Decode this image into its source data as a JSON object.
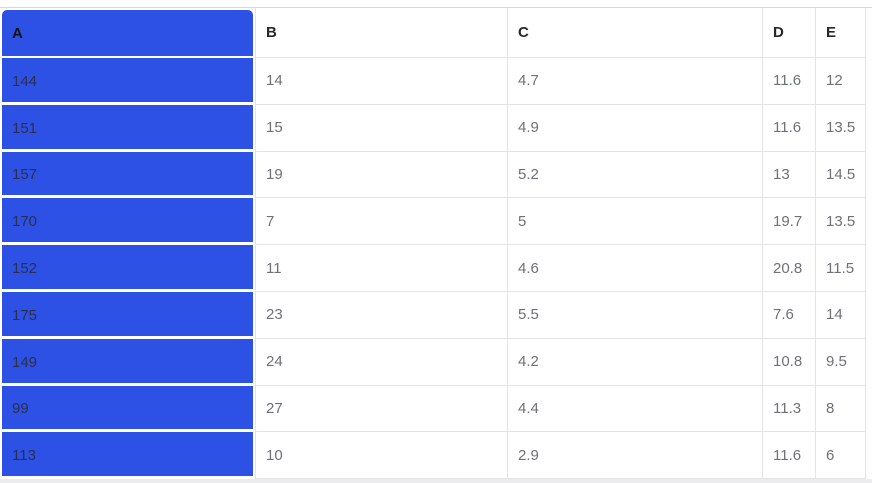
{
  "table": {
    "columns": [
      {
        "label": "A",
        "highlighted": true
      },
      {
        "label": "B",
        "highlighted": false
      },
      {
        "label": "C",
        "highlighted": false
      },
      {
        "label": "D",
        "highlighted": false
      },
      {
        "label": "E",
        "highlighted": false
      }
    ],
    "selected_column": "A",
    "rows": [
      [
        "144",
        "14",
        "4.7",
        "11.6",
        "12"
      ],
      [
        "151",
        "15",
        "4.9",
        "11.6",
        "13.5"
      ],
      [
        "157",
        "19",
        "5.2",
        "13",
        "14.5"
      ],
      [
        "170",
        "7",
        "5",
        "19.7",
        "13.5"
      ],
      [
        "152",
        "11",
        "4.6",
        "20.8",
        "11.5"
      ],
      [
        "175",
        "23",
        "5.5",
        "7.6",
        "14"
      ],
      [
        "149",
        "24",
        "4.2",
        "10.8",
        "9.5"
      ],
      [
        "99",
        "27",
        "4.4",
        "11.3",
        "8"
      ],
      [
        "113",
        "10",
        "2.9",
        "11.6",
        "6"
      ]
    ],
    "colors": {
      "selection_blue": "#2e51e5",
      "grid_border": "#e4e4e6",
      "top_line": "#d8d9da",
      "header_text": "#26282b",
      "cell_text": "#6e7175",
      "selected_cell_text": "#2a2f4d",
      "selected_header_text": "#121418",
      "bottom_strip": "#ececee"
    }
  }
}
